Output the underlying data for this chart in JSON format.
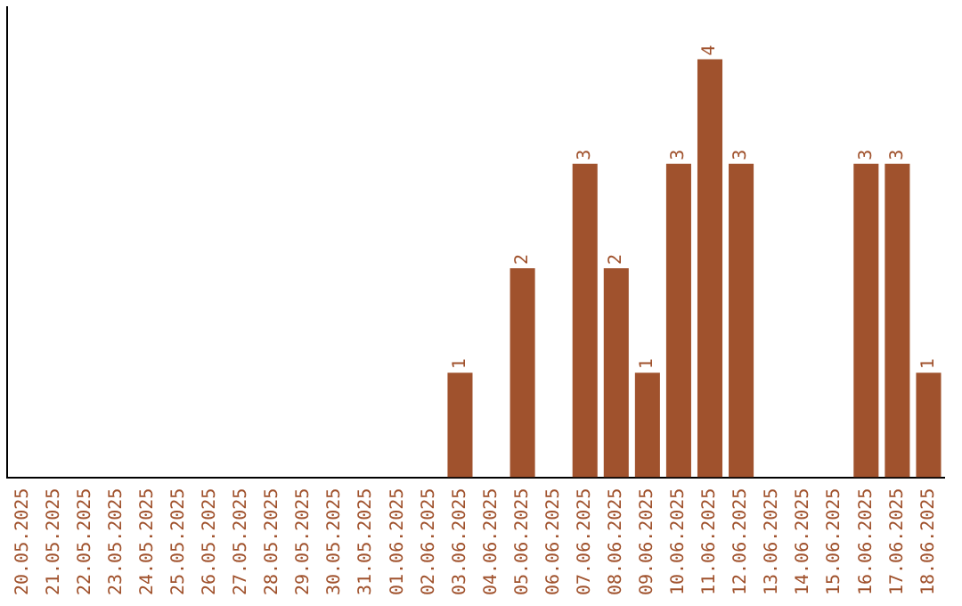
{
  "chart_data": {
    "type": "bar",
    "categories": [
      "20.05.2025",
      "21.05.2025",
      "22.05.2025",
      "23.05.2025",
      "24.05.2025",
      "25.05.2025",
      "26.05.2025",
      "27.05.2025",
      "28.05.2025",
      "29.05.2025",
      "30.05.2025",
      "31.05.2025",
      "01.06.2025",
      "02.06.2025",
      "03.06.2025",
      "04.06.2025",
      "05.06.2025",
      "06.06.2025",
      "07.06.2025",
      "08.06.2025",
      "09.06.2025",
      "10.06.2025",
      "11.06.2025",
      "12.06.2025",
      "13.06.2025",
      "14.06.2025",
      "15.06.2025",
      "16.06.2025",
      "17.06.2025",
      "18.06.2025"
    ],
    "values": [
      null,
      null,
      null,
      null,
      null,
      null,
      null,
      null,
      null,
      null,
      null,
      null,
      null,
      null,
      1,
      null,
      2,
      null,
      3,
      2,
      1,
      3,
      4,
      3,
      null,
      null,
      null,
      3,
      3,
      1
    ],
    "value_labels": [
      null,
      null,
      null,
      null,
      null,
      null,
      null,
      null,
      null,
      null,
      null,
      null,
      null,
      null,
      "1",
      null,
      "2",
      null,
      "3",
      "2",
      "1",
      "3",
      "4",
      "3",
      null,
      null,
      null,
      "3",
      "3",
      "1"
    ],
    "color": "#a0522d",
    "tick_labels": "x",
    "grid": false,
    "legend": false
  }
}
